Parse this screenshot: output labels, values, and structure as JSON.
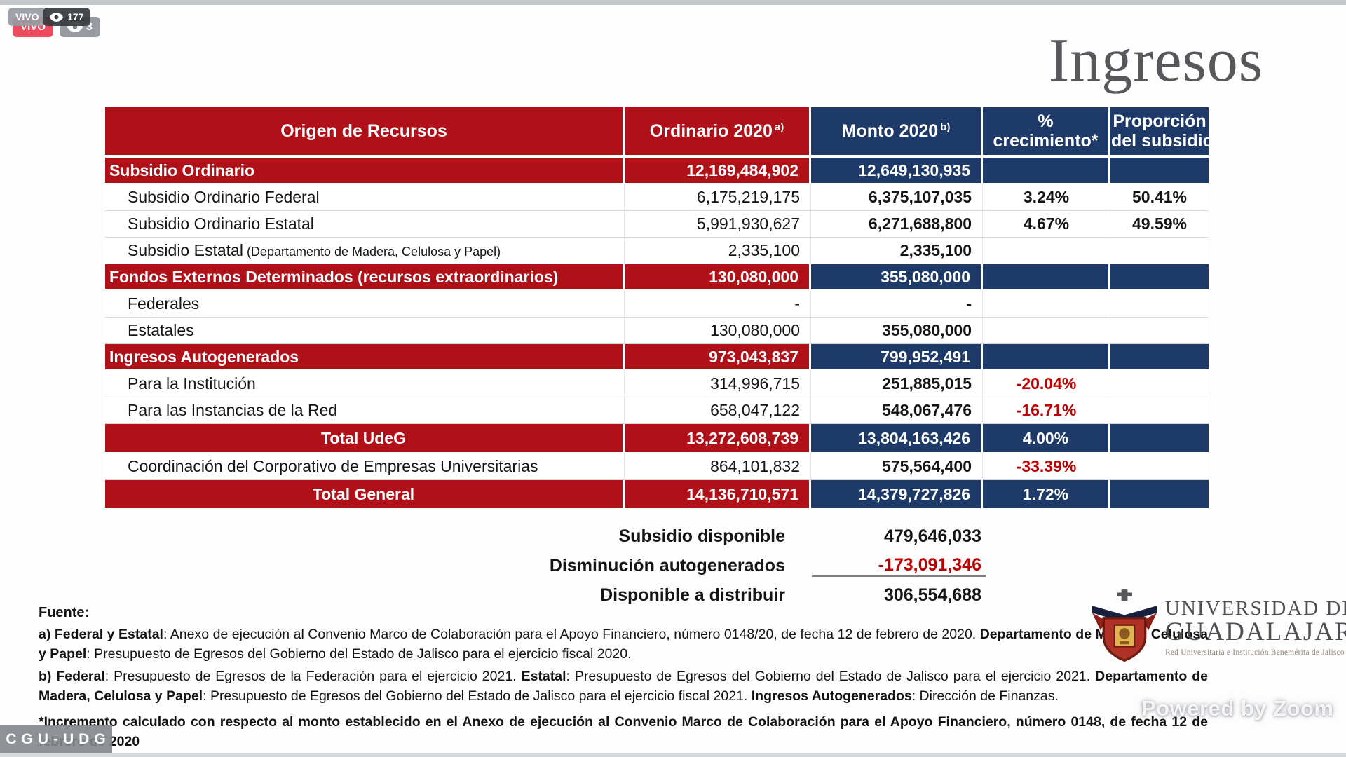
{
  "overlay": {
    "live_badge": "VIVO",
    "live_tooltip": "VIVO",
    "viewers_tooltip": "177",
    "viewers_badge": "3",
    "watermark": "Powered by Zoom",
    "channel_badge": "CGU-UDG"
  },
  "title": "Ingresos",
  "table": {
    "headers": {
      "origen": "Origen de Recursos",
      "ordinario": "Ordinario 2020",
      "ordinario_sup": "a)",
      "monto": "Monto 2020",
      "monto_sup": "b)",
      "pct_line1": "%",
      "pct_line2": "crecimiento*",
      "prop_line1": "Proporción",
      "prop_line2": "del subsidio"
    },
    "rows": [
      {
        "style": "category",
        "label": "Subsidio Ordinario",
        "ordinario": "12,169,484,902",
        "monto": "12,649,130,935",
        "pct": "",
        "prop": ""
      },
      {
        "style": "item",
        "label": "Subsidio Ordinario Federal",
        "ordinario": "6,175,219,175",
        "monto": "6,375,107,035",
        "pct": "3.24%",
        "prop": "50.41%"
      },
      {
        "style": "item",
        "label": "Subsidio Ordinario Estatal",
        "ordinario": "5,991,930,627",
        "monto": "6,271,688,800",
        "pct": "4.67%",
        "prop": "49.59%"
      },
      {
        "style": "item",
        "label": "Subsidio Estatal",
        "note": "(Departamento de Madera, Celulosa y Papel)",
        "ordinario": "2,335,100",
        "monto": "2,335,100",
        "pct": "",
        "prop": ""
      },
      {
        "style": "category",
        "label": "Fondos Externos Determinados (recursos extraordinarios)",
        "ordinario": "130,080,000",
        "monto": "355,080,000",
        "pct": "",
        "prop": ""
      },
      {
        "style": "item",
        "label": "Federales",
        "ordinario": "-",
        "monto": "-",
        "pct": "",
        "prop": ""
      },
      {
        "style": "item",
        "label": "Estatales",
        "ordinario": "130,080,000",
        "monto": "355,080,000",
        "pct": "",
        "prop": ""
      },
      {
        "style": "category",
        "label": "Ingresos Autogenerados",
        "ordinario": "973,043,837",
        "monto": "799,952,491",
        "pct": "",
        "prop": ""
      },
      {
        "style": "item",
        "label": "Para la Institución",
        "ordinario": "314,996,715",
        "monto": "251,885,015",
        "pct": "-20.04%",
        "prop": ""
      },
      {
        "style": "item",
        "label": "Para las Instancias de la Red",
        "ordinario": "658,047,122",
        "monto": "548,067,476",
        "pct": "-16.71%",
        "prop": ""
      },
      {
        "style": "total",
        "label": "Total UdeG",
        "ordinario": "13,272,608,739",
        "monto": "13,804,163,426",
        "pct": "4.00%",
        "prop": ""
      },
      {
        "style": "item",
        "label": "Coordinación del Corporativo de Empresas Universitarias",
        "ordinario": "864,101,832",
        "monto": "575,564,400",
        "pct": "-33.39%",
        "prop": ""
      },
      {
        "style": "total",
        "label": "Total General",
        "ordinario": "14,136,710,571",
        "monto": "14,379,727,826",
        "pct": "1.72%",
        "prop": ""
      }
    ]
  },
  "summary": {
    "rows": [
      {
        "label": "Subsidio disponible",
        "value": "479,646,033"
      },
      {
        "label": "Disminución autogenerados",
        "value": "-173,091,346"
      },
      {
        "label": "Disponible a distribuir",
        "value": "306,554,688"
      }
    ]
  },
  "footnotes": {
    "heading": "Fuente:",
    "a": [
      {
        "t": "a) Federal y Estatal",
        "b": true
      },
      {
        "t": ": Anexo de ejecución al Convenio Marco de Colaboración para el Apoyo Financiero, número 0148/20, de fecha 12 de febrero de 2020. ",
        "b": false
      },
      {
        "t": "Departamento de Madera, Celulosa y Papel",
        "b": true
      },
      {
        "t": ": Presupuesto de Egresos del Gobierno del Estado de Jalisco para el ejercicio fiscal 2020.",
        "b": false
      }
    ],
    "b": [
      {
        "t": "b) Federal",
        "b": true
      },
      {
        "t": ": Presupuesto de Egresos de la Federación para el ejercicio 2021. ",
        "b": false
      },
      {
        "t": "Estatal",
        "b": true
      },
      {
        "t": ": Presupuesto de Egresos del Gobierno del Estado de Jalisco para el ejercicio 2021. ",
        "b": false
      },
      {
        "t": "Departamento de Madera, Celulosa y Papel",
        "b": true
      },
      {
        "t": ": Presupuesto de Egresos del Gobierno del Estado de Jalisco para el ejercicio fiscal 2021. ",
        "b": false
      },
      {
        "t": "Ingresos Autogenerados",
        "b": true
      },
      {
        "t": ": Dirección de Finanzas.",
        "b": false
      }
    ],
    "star": [
      {
        "t": "*Incremento calculado con respecto al monto establecido en el Anexo de ejecución al Convenio Marco de Colaboración para el Apoyo Financiero, número 0148, de fecha 12 de febrero de 2020",
        "b": true
      }
    ]
  },
  "logo": {
    "line1": "UNIVERSIDAD DE",
    "line2": "GUADALAJARA",
    "line3": "Red Universitaria e Institución Benemérita de Jalisco"
  },
  "colors": {
    "header_red": "#b01119",
    "header_blue": "#1e3a68",
    "negative_red": "#c00000",
    "live_badge_red": "#ee4b5f"
  }
}
